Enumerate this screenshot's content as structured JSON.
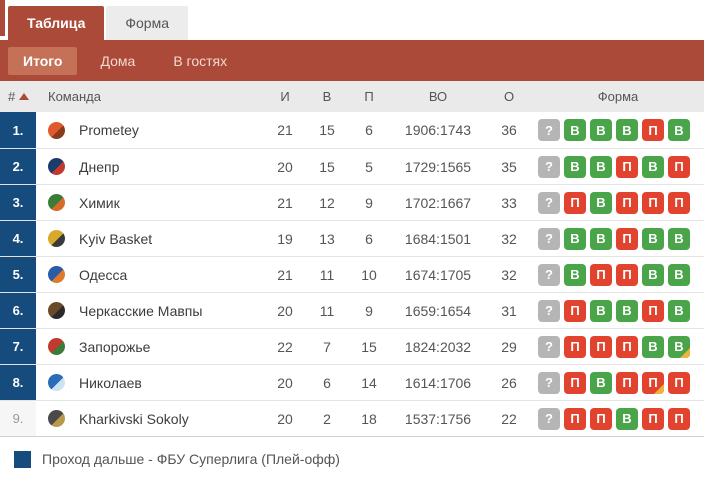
{
  "tabs": [
    {
      "label": "Таблица",
      "active": true
    },
    {
      "label": "Форма",
      "active": false
    }
  ],
  "subtabs": [
    {
      "label": "Итого",
      "active": true
    },
    {
      "label": "Дома",
      "active": false
    },
    {
      "label": "В гостях",
      "active": false
    }
  ],
  "table": {
    "headers": {
      "rank": "#",
      "team": "Команда",
      "games": "И",
      "wins": "В",
      "losses": "П",
      "score": "ВО",
      "points": "О",
      "form": "Форма"
    },
    "rows": [
      {
        "rank": "1.",
        "team": "Prometey",
        "games": "21",
        "wins": "15",
        "losses": "6",
        "score": "1906:1743",
        "points": "36",
        "highlight": true,
        "logo": {
          "c1": "#e05a2b",
          "c2": "#8a3a1e"
        },
        "form": [
          {
            "v": "?"
          },
          {
            "v": "В"
          },
          {
            "v": "В"
          },
          {
            "v": "В"
          },
          {
            "v": "П"
          },
          {
            "v": "В"
          }
        ]
      },
      {
        "rank": "2.",
        "team": "Днепр",
        "games": "20",
        "wins": "15",
        "losses": "5",
        "score": "1729:1565",
        "points": "35",
        "highlight": true,
        "logo": {
          "c1": "#1c3c6e",
          "c2": "#c03a2e"
        },
        "form": [
          {
            "v": "?"
          },
          {
            "v": "В"
          },
          {
            "v": "В"
          },
          {
            "v": "П"
          },
          {
            "v": "В"
          },
          {
            "v": "П"
          }
        ]
      },
      {
        "rank": "3.",
        "team": "Химик",
        "games": "21",
        "wins": "12",
        "losses": "9",
        "score": "1702:1667",
        "points": "33",
        "highlight": true,
        "logo": {
          "c1": "#3a7d3a",
          "c2": "#d86a2a"
        },
        "form": [
          {
            "v": "?"
          },
          {
            "v": "П"
          },
          {
            "v": "В"
          },
          {
            "v": "П"
          },
          {
            "v": "П"
          },
          {
            "v": "П"
          }
        ]
      },
      {
        "rank": "4.",
        "team": "Kyiv Basket",
        "games": "19",
        "wins": "13",
        "losses": "6",
        "score": "1684:1501",
        "points": "32",
        "highlight": true,
        "logo": {
          "c1": "#d8a92a",
          "c2": "#3a3a3a"
        },
        "form": [
          {
            "v": "?"
          },
          {
            "v": "В"
          },
          {
            "v": "В"
          },
          {
            "v": "П"
          },
          {
            "v": "В"
          },
          {
            "v": "В"
          }
        ]
      },
      {
        "rank": "5.",
        "team": "Одесса",
        "games": "21",
        "wins": "11",
        "losses": "10",
        "score": "1674:1705",
        "points": "32",
        "highlight": true,
        "logo": {
          "c1": "#2a5ca8",
          "c2": "#e07a2a"
        },
        "form": [
          {
            "v": "?"
          },
          {
            "v": "В"
          },
          {
            "v": "П"
          },
          {
            "v": "П"
          },
          {
            "v": "В"
          },
          {
            "v": "В"
          }
        ]
      },
      {
        "rank": "6.",
        "team": "Черкасские Мавпы",
        "games": "20",
        "wins": "11",
        "losses": "9",
        "score": "1659:1654",
        "points": "31",
        "highlight": true,
        "logo": {
          "c1": "#6a4a2a",
          "c2": "#2a2a2a"
        },
        "form": [
          {
            "v": "?"
          },
          {
            "v": "П"
          },
          {
            "v": "В"
          },
          {
            "v": "В"
          },
          {
            "v": "П"
          },
          {
            "v": "В"
          }
        ]
      },
      {
        "rank": "7.",
        "team": "Запорожье",
        "games": "22",
        "wins": "7",
        "losses": "15",
        "score": "1824:2032",
        "points": "29",
        "highlight": true,
        "logo": {
          "c1": "#c03a2e",
          "c2": "#3a7d3a"
        },
        "form": [
          {
            "v": "?"
          },
          {
            "v": "П"
          },
          {
            "v": "П"
          },
          {
            "v": "П"
          },
          {
            "v": "В"
          },
          {
            "v": "В",
            "ot": true
          }
        ]
      },
      {
        "rank": "8.",
        "team": "Николаев",
        "games": "20",
        "wins": "6",
        "losses": "14",
        "score": "1614:1706",
        "points": "26",
        "highlight": true,
        "logo": {
          "c1": "#2a6cb8",
          "c2": "#cfe2f3"
        },
        "form": [
          {
            "v": "?"
          },
          {
            "v": "П"
          },
          {
            "v": "В"
          },
          {
            "v": "П"
          },
          {
            "v": "П",
            "ot": true
          },
          {
            "v": "П"
          }
        ]
      },
      {
        "rank": "9.",
        "team": "Kharkivski Sokoly",
        "games": "20",
        "wins": "2",
        "losses": "18",
        "score": "1537:1756",
        "points": "22",
        "highlight": false,
        "logo": {
          "c1": "#4a4a4a",
          "c2": "#b89a4a"
        },
        "form": [
          {
            "v": "?"
          },
          {
            "v": "П"
          },
          {
            "v": "П"
          },
          {
            "v": "В"
          },
          {
            "v": "П"
          },
          {
            "v": "П"
          }
        ]
      }
    ]
  },
  "legend": {
    "text": "Проход дальше - ФБУ Суперлига (Плей-офф)",
    "swatch_color": "#154b7d"
  },
  "colors": {
    "brand_red": "#ab4a38",
    "active_subtab": "#c47158",
    "highlight_navy": "#154b7d",
    "badge_win": "#4aa54a",
    "badge_loss": "#e2432f",
    "badge_upcoming": "#b5b5b5",
    "badge_overtime_corner": "#f0b33c",
    "header_bg": "#eaeaea"
  }
}
